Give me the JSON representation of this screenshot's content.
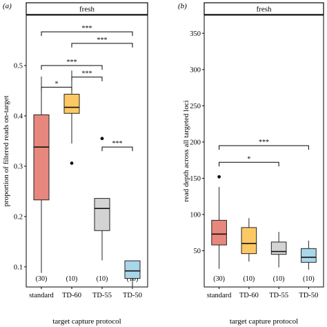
{
  "chart_data": [
    {
      "type": "boxplot",
      "panel_letter": "(a)",
      "strip_title": "fresh",
      "xlabel": "target capture protocol",
      "ylabel": "proportion of filtered reads on-target",
      "ylim": [
        0.06,
        0.6
      ],
      "yticks": [
        0.1,
        0.2,
        0.3,
        0.4,
        0.5
      ],
      "ytick_labels": [
        "0.1",
        "0.2",
        "0.3",
        "0.4",
        "0.5"
      ],
      "categories": [
        "standard",
        "TD-60",
        "TD-55",
        "TD-50"
      ],
      "counts": [
        "(30)",
        "(10)",
        "(10)",
        "(10)"
      ],
      "colors": [
        "#e8877d",
        "#fcc863",
        "#d3d3d3",
        "#a9d6e8"
      ],
      "boxes": [
        {
          "whislo": 0.088,
          "q1": 0.233,
          "med": 0.338,
          "q3": 0.402,
          "whishi": 0.478,
          "outliers": []
        },
        {
          "whislo": 0.345,
          "q1": 0.405,
          "med": 0.417,
          "q3": 0.443,
          "whishi": 0.49,
          "outliers": [
            0.306
          ]
        },
        {
          "whislo": 0.113,
          "q1": 0.172,
          "med": 0.216,
          "q3": 0.236,
          "whishi": 0.236,
          "outliers": [
            0.355
          ]
        },
        {
          "whislo": 0.057,
          "q1": 0.077,
          "med": 0.092,
          "q3": 0.112,
          "whishi": 0.112,
          "outliers": []
        }
      ],
      "significance": [
        {
          "from": 0,
          "to": 3,
          "y": 0.567,
          "label": "***"
        },
        {
          "from": 1,
          "to": 3,
          "y": 0.544,
          "label": "***"
        },
        {
          "from": 0,
          "to": 2,
          "y": 0.5,
          "label": "***"
        },
        {
          "from": 1,
          "to": 2,
          "y": 0.477,
          "label": "***"
        },
        {
          "from": 0,
          "to": 1,
          "y": 0.457,
          "label": "*"
        },
        {
          "from": 2,
          "to": 3,
          "y": 0.338,
          "label": "***"
        }
      ]
    },
    {
      "type": "boxplot",
      "panel_letter": "(b)",
      "strip_title": "fresh",
      "xlabel": "target capture protocol",
      "ylabel": "read depth across all targeted loci",
      "ylim": [
        0,
        375
      ],
      "yticks": [
        50,
        100,
        150,
        200,
        250,
        300,
        350
      ],
      "ytick_labels": [
        "50",
        "100",
        "150",
        "200",
        "250",
        "300",
        "350"
      ],
      "categories": [
        "standard",
        "TD-60",
        "TD-55",
        "TD-50"
      ],
      "counts": [
        "(30)",
        "(10)",
        "(10)",
        "(10)"
      ],
      "colors": [
        "#e8877d",
        "#fcc863",
        "#d3d3d3",
        "#a9d6e8"
      ],
      "boxes": [
        {
          "whislo": 25,
          "q1": 58,
          "med": 73,
          "q3": 92,
          "whishi": 138,
          "outliers": [
            152
          ]
        },
        {
          "whislo": 35,
          "q1": 46,
          "med": 60,
          "q3": 82,
          "whishi": 95,
          "outliers": []
        },
        {
          "whislo": 27,
          "q1": 45,
          "med": 49,
          "q3": 62,
          "whishi": 76,
          "outliers": []
        },
        {
          "whislo": 24,
          "q1": 34,
          "med": 41,
          "q3": 53,
          "whishi": 64,
          "outliers": []
        }
      ],
      "significance": [
        {
          "from": 0,
          "to": 3,
          "y": 195,
          "label": "***"
        },
        {
          "from": 0,
          "to": 2,
          "y": 172,
          "label": "*"
        }
      ]
    }
  ]
}
